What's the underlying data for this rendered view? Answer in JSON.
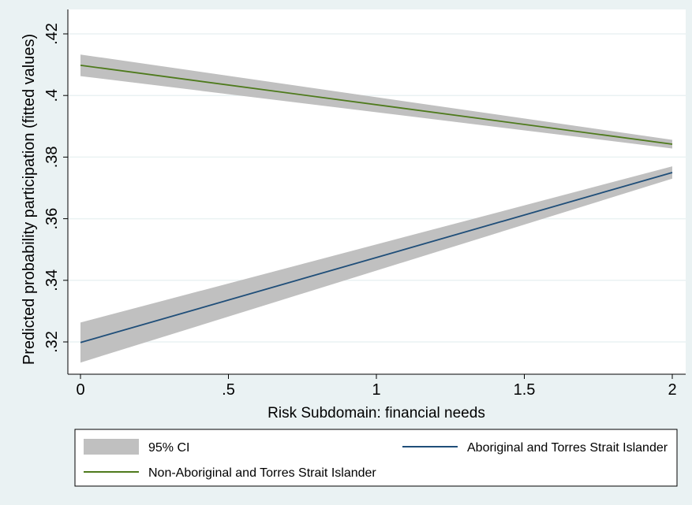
{
  "chart_data": {
    "type": "line",
    "title": "",
    "xlabel": "Risk Subdomain: financial needs",
    "ylabel": "Predicted probability participation (fitted values)",
    "xlim": [
      0,
      2
    ],
    "ylim": [
      0.312,
      0.422
    ],
    "x_ticks": [
      0,
      0.5,
      1,
      1.5,
      2
    ],
    "x_tick_labels": [
      "0",
      ".5",
      "1",
      "1.5",
      "2"
    ],
    "y_ticks": [
      0.32,
      0.34,
      0.36,
      0.38,
      0.4,
      0.42
    ],
    "y_tick_labels": [
      ".32",
      ".34",
      ".36",
      ".38",
      ".4",
      ".42"
    ],
    "grid": true,
    "legend_position": "bottom",
    "series": [
      {
        "name": "Aboriginal and Torres Strait Islander",
        "color": "#1f4e79",
        "x": [
          0,
          2
        ],
        "y": [
          0.3198,
          0.375
        ],
        "ci_lower": [
          0.3133,
          0.373
        ],
        "ci_upper": [
          0.3263,
          0.377
        ]
      },
      {
        "name": "Non-Aboriginal and Torres Strait Islander",
        "color": "#4e7a1c",
        "x": [
          0,
          2
        ],
        "y": [
          0.4098,
          0.3842
        ],
        "ci_lower": [
          0.4063,
          0.3828
        ],
        "ci_upper": [
          0.4133,
          0.3856
        ]
      }
    ],
    "ci_label": "95% CI",
    "ci_color": "#c0c0c0",
    "colors": {
      "background": "#eaf2f3",
      "plot_background": "#ffffff",
      "grid": "#eaf2f3"
    }
  }
}
